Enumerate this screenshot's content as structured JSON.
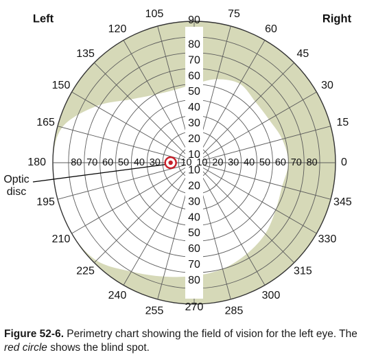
{
  "chart_data": {
    "type": "perimetry",
    "corner_labels": {
      "left": "Left",
      "right": "Right"
    },
    "meridian_labels": [
      "0",
      "15",
      "30",
      "45",
      "60",
      "75",
      "90",
      "105",
      "120",
      "135",
      "150",
      "165",
      "180",
      "195",
      "210",
      "225",
      "240",
      "255",
      "270",
      "285",
      "300",
      "315",
      "330",
      "345"
    ],
    "ring_labels": [
      "10",
      "20",
      "30",
      "40",
      "50",
      "60",
      "70",
      "80"
    ],
    "visual_field_boundary": [
      {
        "angle": 0,
        "ecc": 60
      },
      {
        "angle": 15,
        "ecc": 58
      },
      {
        "angle": 30,
        "ecc": 55
      },
      {
        "angle": 45,
        "ecc": 55
      },
      {
        "angle": 60,
        "ecc": 58
      },
      {
        "angle": 75,
        "ecc": 55
      },
      {
        "angle": 90,
        "ecc": 50
      },
      {
        "angle": 105,
        "ecc": 48
      },
      {
        "angle": 120,
        "ecc": 50
      },
      {
        "angle": 135,
        "ecc": 57
      },
      {
        "angle": 150,
        "ecc": 72
      },
      {
        "angle": 165,
        "ecc": 87
      },
      {
        "angle": 180,
        "ecc": 90
      },
      {
        "angle": 195,
        "ecc": 90
      },
      {
        "angle": 210,
        "ecc": 90
      },
      {
        "angle": 225,
        "ecc": 88
      },
      {
        "angle": 240,
        "ecc": 80
      },
      {
        "angle": 255,
        "ecc": 75
      },
      {
        "angle": 270,
        "ecc": 72
      },
      {
        "angle": 285,
        "ecc": 70
      },
      {
        "angle": 300,
        "ecc": 67
      },
      {
        "angle": 315,
        "ecc": 64
      },
      {
        "angle": 330,
        "ecc": 60
      },
      {
        "angle": 345,
        "ecc": 58
      }
    ],
    "blind_spot": {
      "angle": 180,
      "ecc": 15,
      "label": "Optic disc"
    },
    "colors": {
      "field_loss": "#d6d9b8",
      "grid": "#5a5a5a",
      "blind_spot": "#c8202a"
    }
  },
  "caption": {
    "label": "Figure 52-6.",
    "text_before": " Perimetry chart showing the field of vision for the left eye. The ",
    "emphasis": "red circle",
    "text_after": " shows the blind spot."
  }
}
